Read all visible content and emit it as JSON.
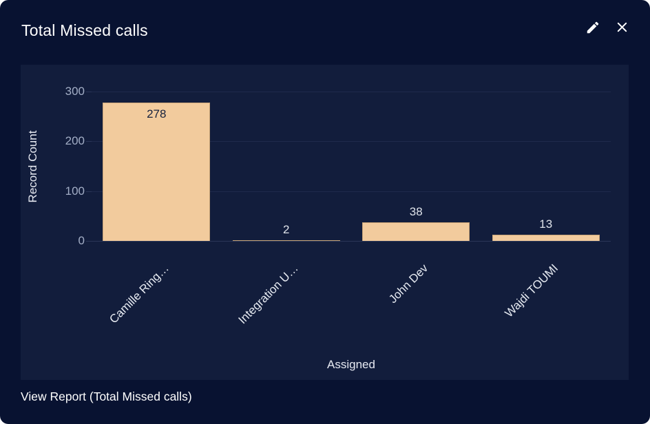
{
  "widget": {
    "title": "Total Missed calls",
    "footer_link_label": "View Report (Total Missed calls)",
    "edit_icon": "pencil-icon",
    "close_icon": "close-icon"
  },
  "chart_data": {
    "type": "bar",
    "title": "Total Missed calls",
    "categories": [
      "Camille Ring…",
      "Integration U…",
      "John Dev",
      "Wajdi TOUMI"
    ],
    "values": [
      278,
      2,
      38,
      13
    ],
    "xlabel": "Assigned",
    "ylabel": "Record Count",
    "ylim": [
      0,
      300
    ],
    "yticks": [
      0,
      100,
      200,
      300
    ],
    "grid": true,
    "legend": "none",
    "bar_color": "#f2cb9d",
    "value_label_inside_color": "#16213d",
    "value_label_outside_color": "#dfe3ea"
  },
  "colors": {
    "card_background": "#081231",
    "panel_background": "#121d3c",
    "gridline": "#1f2a4c",
    "tick_text": "#a3aec6",
    "axis_title_text": "#e7eaf2",
    "title_text": "#ffffff",
    "link_text": "#fefefe"
  }
}
